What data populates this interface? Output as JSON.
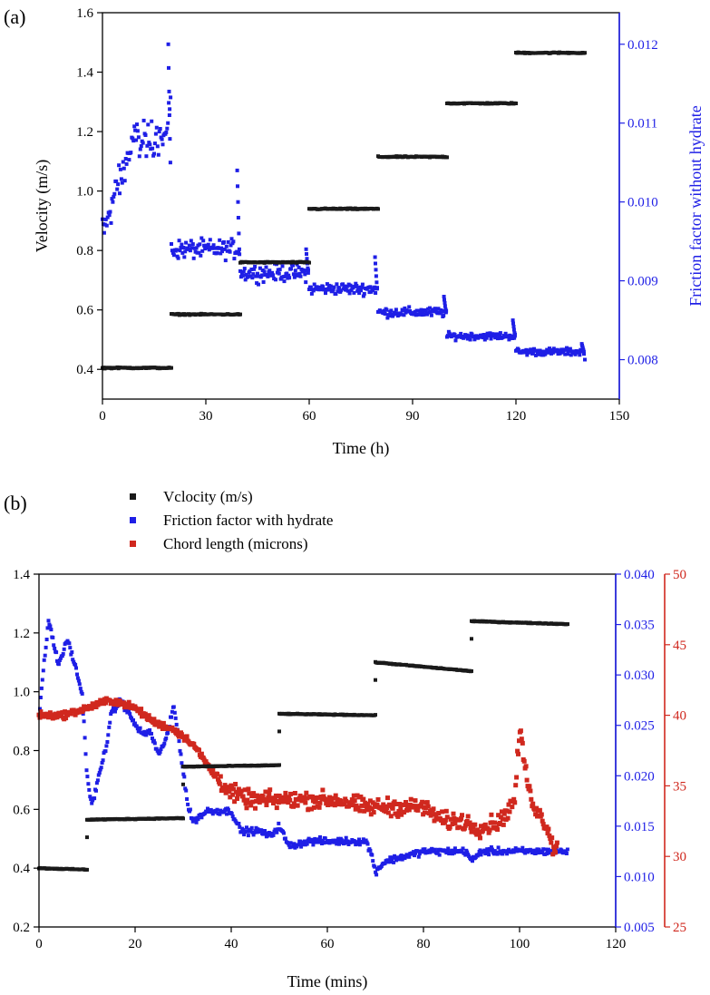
{
  "colors": {
    "black": "#1a1a1a",
    "blue": "#1f1fe6",
    "red": "#d0281e",
    "axis": "#000000"
  },
  "chart_data": [
    {
      "panel_label": "(a)",
      "type": "scatter",
      "xlabel": "Time (h)",
      "ylabel": "Velocity (m/s)",
      "y2label": "Friction factor without hydrate",
      "xlim": [
        0,
        150
      ],
      "ylim": [
        0.3,
        1.6
      ],
      "y2lim": [
        0.0075,
        0.0124
      ],
      "xticks": [
        "0",
        "30",
        "60",
        "90",
        "120",
        "150"
      ],
      "xtick_values": [
        0,
        30,
        60,
        90,
        120,
        150
      ],
      "yticks": [
        "0.4",
        "0.6",
        "0.8",
        "1.0",
        "1.2",
        "1.4",
        "1.6"
      ],
      "ytick_values": [
        0.4,
        0.6,
        0.8,
        1.0,
        1.2,
        1.4,
        1.6
      ],
      "y2ticks": [
        "0.008",
        "0.009",
        "0.010",
        "0.011",
        "0.012"
      ],
      "y2tick_values": [
        0.008,
        0.009,
        0.01,
        0.011,
        0.012
      ],
      "series": [
        {
          "name": "Velocity (m/s)",
          "axis": "left",
          "color": "black",
          "segments": [
            {
              "x0": 0,
              "x1": 20,
              "y": 0.405
            },
            {
              "x0": 20,
              "x1": 40,
              "y": 0.585
            },
            {
              "x0": 40,
              "x1": 60,
              "y": 0.76
            },
            {
              "x0": 60,
              "x1": 80,
              "y": 0.94
            },
            {
              "x0": 80,
              "x1": 100,
              "y": 1.115
            },
            {
              "x0": 100,
              "x1": 120,
              "y": 1.295
            },
            {
              "x0": 120,
              "x1": 140,
              "y": 1.465
            }
          ]
        },
        {
          "name": "Friction factor without hydrate",
          "axis": "right",
          "color": "blue",
          "segments": [
            {
              "x0": 0,
              "x1": 20,
              "y": 0.0105,
              "noise": 0.0004,
              "start": 0.0096,
              "spike": 0.012
            },
            {
              "x0": 20,
              "x1": 40,
              "y": 0.0094,
              "noise": 8e-05,
              "spike": 0.0104
            },
            {
              "x0": 40,
              "x1": 60,
              "y": 0.0091,
              "noise": 7e-05,
              "spike": 0.0094
            },
            {
              "x0": 60,
              "x1": 80,
              "y": 0.0089,
              "noise": 5e-05,
              "spike": 0.0093
            },
            {
              "x0": 80,
              "x1": 100,
              "y": 0.0086,
              "noise": 4e-05,
              "spike": 0.0088
            },
            {
              "x0": 100,
              "x1": 120,
              "y": 0.0083,
              "noise": 3e-05,
              "spike": 0.0085
            },
            {
              "x0": 120,
              "x1": 140,
              "y": 0.0081,
              "noise": 3e-05,
              "spike": 0.0082,
              "end": 0.008
            }
          ]
        }
      ]
    },
    {
      "panel_label": "(b)",
      "type": "scatter",
      "xlabel": "Time (mins)",
      "ylabel": "",
      "xlim": [
        0,
        120
      ],
      "ylim": [
        0.2,
        1.4
      ],
      "y2lim": [
        0.005,
        0.04
      ],
      "y3lim": [
        25,
        50
      ],
      "xticks": [
        "0",
        "20",
        "40",
        "60",
        "80",
        "100",
        "120"
      ],
      "xtick_values": [
        0,
        20,
        40,
        60,
        80,
        100,
        120
      ],
      "yticks": [
        "0.2",
        "0.4",
        "0.6",
        "0.8",
        "1.0",
        "1.2",
        "1.4"
      ],
      "ytick_values": [
        0.2,
        0.4,
        0.6,
        0.8,
        1.0,
        1.2,
        1.4
      ],
      "y2ticks": [
        "0.005",
        "0.010",
        "0.015",
        "0.020",
        "0.025",
        "0.030",
        "0.035",
        "0.040"
      ],
      "y2tick_values": [
        0.005,
        0.01,
        0.015,
        0.02,
        0.025,
        0.03,
        0.035,
        0.04
      ],
      "y3ticks": [
        "25",
        "30",
        "35",
        "40",
        "45",
        "50"
      ],
      "y3tick_values": [
        25,
        30,
        35,
        40,
        45,
        50
      ],
      "legend": [
        "Vclocity (m/s)",
        "Friction factor with hydrate",
        "Chord length (microns)"
      ],
      "series": [
        {
          "name": "Vclocity (m/s)",
          "axis": "left",
          "color": "black",
          "segments": [
            {
              "x0": 0,
              "x1": 10,
              "y0": 0.4,
              "y1": 0.395
            },
            {
              "x0": 10,
              "x1": 30,
              "y0": 0.565,
              "y1": 0.57
            },
            {
              "x0": 30,
              "x1": 50,
              "y0": 0.745,
              "y1": 0.75
            },
            {
              "x0": 50,
              "x1": 70,
              "y0": 0.925,
              "y1": 0.92
            },
            {
              "x0": 70,
              "x1": 90,
              "y0": 1.1,
              "y1": 1.07
            },
            {
              "x0": 90,
              "x1": 110,
              "y0": 1.24,
              "y1": 1.23
            }
          ]
        },
        {
          "name": "Friction factor with hydrate",
          "axis": "right",
          "color": "blue",
          "x": [
            0,
            2,
            4,
            6,
            8,
            9,
            10,
            11,
            12,
            14,
            15,
            17,
            19,
            20,
            22,
            23,
            25,
            27,
            28,
            29,
            30,
            31,
            32,
            35,
            38,
            40,
            42,
            44,
            46,
            48,
            50,
            52,
            56,
            60,
            64,
            68,
            69,
            70,
            72,
            76,
            80,
            84,
            88,
            89,
            90,
            92,
            96,
            100,
            104,
            106,
            108,
            110
          ],
          "values": [
            0.026,
            0.0355,
            0.031,
            0.0335,
            0.03,
            0.028,
            0.02,
            0.017,
            0.019,
            0.023,
            0.026,
            0.0275,
            0.026,
            0.025,
            0.024,
            0.0245,
            0.022,
            0.0245,
            0.027,
            0.024,
            0.0205,
            0.017,
            0.0155,
            0.0165,
            0.0165,
            0.0165,
            0.0145,
            0.0145,
            0.0145,
            0.014,
            0.015,
            0.013,
            0.0135,
            0.0135,
            0.0135,
            0.0135,
            0.0125,
            0.0105,
            0.0115,
            0.012,
            0.0125,
            0.0125,
            0.0125,
            0.0125,
            0.0115,
            0.0125,
            0.0125,
            0.0125,
            0.0125,
            0.0125,
            0.0125,
            0.0125
          ]
        },
        {
          "name": "Chord length (microns)",
          "axis": "right2",
          "color": "red",
          "x": [
            0,
            5,
            10,
            14,
            16,
            20,
            24,
            28,
            32,
            36,
            40,
            44,
            50,
            56,
            62,
            68,
            72,
            76,
            80,
            84,
            88,
            92,
            96,
            99,
            100,
            102,
            104,
            106,
            107,
            108
          ],
          "values": [
            40.0,
            40.0,
            40.5,
            41.0,
            41.0,
            40.5,
            39.5,
            39.0,
            38.0,
            36.0,
            34.5,
            34.0,
            34.0,
            34.0,
            34.0,
            33.5,
            33.5,
            33.5,
            33.5,
            32.5,
            32.5,
            32.0,
            32.5,
            34.0,
            39.0,
            34.5,
            33.0,
            32.0,
            30.5,
            31.0
          ]
        }
      ]
    }
  ]
}
